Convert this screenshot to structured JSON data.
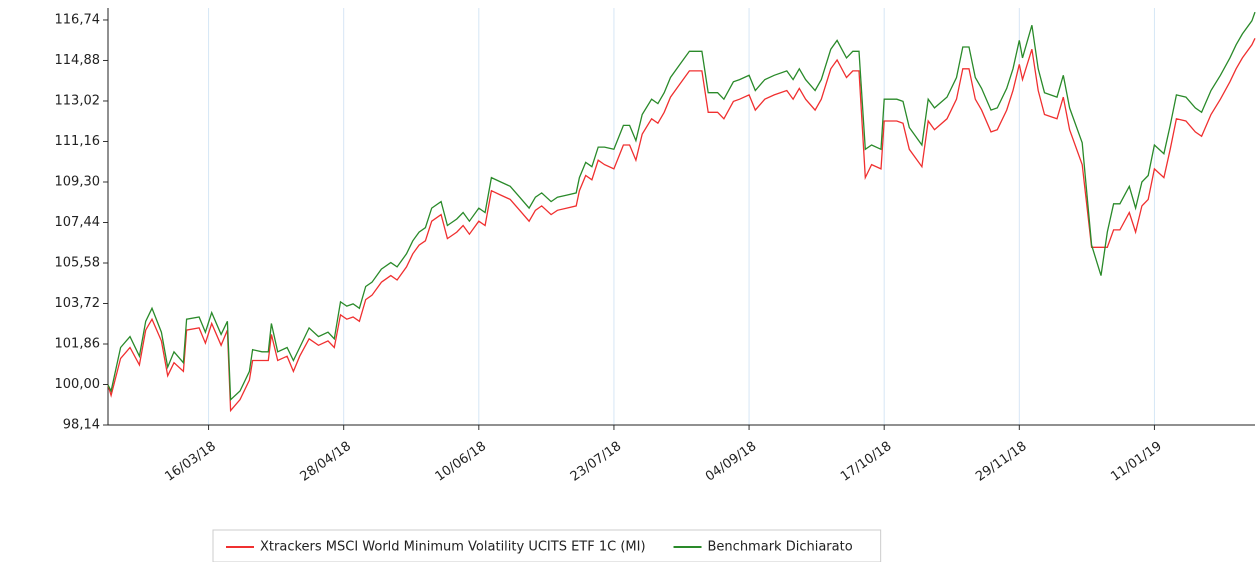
{
  "chart_data": {
    "type": "line",
    "x": [
      "2018-02-12",
      "2018-02-13",
      "2018-02-16",
      "2018-02-19",
      "2018-02-22",
      "2018-02-24",
      "2018-02-26",
      "2018-03-01",
      "2018-03-03",
      "2018-03-05",
      "2018-03-08",
      "2018-03-09",
      "2018-03-13",
      "2018-03-15",
      "2018-03-17",
      "2018-03-20",
      "2018-03-22",
      "2018-03-23",
      "2018-03-26",
      "2018-03-29",
      "2018-03-30",
      "2018-04-02",
      "2018-04-04",
      "2018-04-05",
      "2018-04-07",
      "2018-04-10",
      "2018-04-12",
      "2018-04-14",
      "2018-04-17",
      "2018-04-20",
      "2018-04-23",
      "2018-04-25",
      "2018-04-27",
      "2018-04-29",
      "2018-05-01",
      "2018-05-03",
      "2018-05-05",
      "2018-05-07",
      "2018-05-10",
      "2018-05-13",
      "2018-05-15",
      "2018-05-18",
      "2018-05-20",
      "2018-05-22",
      "2018-05-24",
      "2018-05-26",
      "2018-05-29",
      "2018-05-31",
      "2018-06-03",
      "2018-06-05",
      "2018-06-07",
      "2018-06-10",
      "2018-06-12",
      "2018-06-14",
      "2018-06-17",
      "2018-06-20",
      "2018-06-23",
      "2018-06-26",
      "2018-06-28",
      "2018-06-30",
      "2018-07-03",
      "2018-07-05",
      "2018-07-08",
      "2018-07-11",
      "2018-07-12",
      "2018-07-14",
      "2018-07-16",
      "2018-07-18",
      "2018-07-20",
      "2018-07-23",
      "2018-07-26",
      "2018-07-28",
      "2018-07-30",
      "2018-08-01",
      "2018-08-04",
      "2018-08-06",
      "2018-08-08",
      "2018-08-10",
      "2018-08-13",
      "2018-08-16",
      "2018-08-20",
      "2018-08-22",
      "2018-08-25",
      "2018-08-27",
      "2018-08-30",
      "2018-09-01",
      "2018-09-04",
      "2018-09-06",
      "2018-09-09",
      "2018-09-12",
      "2018-09-16",
      "2018-09-18",
      "2018-09-20",
      "2018-09-22",
      "2018-09-25",
      "2018-09-27",
      "2018-09-30",
      "2018-10-02",
      "2018-10-05",
      "2018-10-07",
      "2018-10-09",
      "2018-10-11",
      "2018-10-13",
      "2018-10-16",
      "2018-10-17",
      "2018-10-21",
      "2018-10-23",
      "2018-10-25",
      "2018-10-29",
      "2018-10-31",
      "2018-11-02",
      "2018-11-06",
      "2018-11-09",
      "2018-11-11",
      "2018-11-13",
      "2018-11-15",
      "2018-11-17",
      "2018-11-20",
      "2018-11-22",
      "2018-11-25",
      "2018-11-27",
      "2018-11-29",
      "2018-11-30",
      "2018-12-03",
      "2018-12-05",
      "2018-12-07",
      "2018-12-11",
      "2018-12-13",
      "2018-12-15",
      "2018-12-19",
      "2018-12-22",
      "2018-12-25",
      "2018-12-27",
      "2018-12-29",
      "2018-12-31",
      "2019-01-03",
      "2019-01-05",
      "2019-01-07",
      "2019-01-09",
      "2019-01-11",
      "2019-01-14",
      "2019-01-16",
      "2019-01-18",
      "2019-01-21",
      "2019-01-24",
      "2019-01-26",
      "2019-01-29",
      "2019-02-01",
      "2019-02-04",
      "2019-02-06",
      "2019-02-08",
      "2019-02-11",
      "2019-02-12"
    ],
    "series": [
      {
        "name": "Xtrackers MSCI World Minimum Volatility UCITS ETF 1C (MI)",
        "color": "#f03030",
        "values": [
          99.98,
          99.5,
          101.2,
          101.7,
          100.9,
          102.5,
          103.0,
          102.0,
          100.4,
          101.0,
          100.6,
          102.5,
          102.6,
          101.9,
          102.8,
          101.8,
          102.5,
          98.8,
          99.3,
          100.2,
          101.1,
          101.1,
          101.1,
          102.3,
          101.1,
          101.3,
          100.6,
          101.3,
          102.1,
          101.8,
          102.0,
          101.7,
          103.2,
          103.0,
          103.1,
          102.9,
          103.9,
          104.1,
          104.7,
          105.0,
          104.8,
          105.4,
          106.0,
          106.4,
          106.6,
          107.5,
          107.8,
          106.7,
          107.0,
          107.3,
          106.9,
          107.5,
          107.3,
          108.9,
          108.7,
          108.5,
          108.0,
          107.5,
          108.0,
          108.2,
          107.8,
          108.0,
          108.1,
          108.2,
          108.9,
          109.6,
          109.4,
          110.3,
          110.1,
          109.9,
          111.0,
          111.0,
          110.3,
          111.5,
          112.2,
          112.0,
          112.5,
          113.2,
          113.8,
          114.4,
          114.4,
          112.5,
          112.5,
          112.2,
          113.0,
          113.1,
          113.3,
          112.6,
          113.1,
          113.3,
          113.5,
          113.1,
          113.6,
          113.1,
          112.6,
          113.1,
          114.5,
          114.9,
          114.1,
          114.4,
          114.4,
          109.5,
          110.1,
          109.9,
          112.1,
          112.1,
          112.0,
          110.8,
          110.0,
          112.1,
          111.7,
          112.2,
          113.1,
          114.5,
          114.5,
          113.1,
          112.6,
          111.6,
          111.7,
          112.6,
          113.5,
          114.7,
          114.0,
          115.4,
          113.5,
          112.4,
          112.2,
          113.2,
          111.7,
          110.1,
          106.3,
          106.3,
          106.3,
          107.1,
          107.1,
          107.9,
          107.0,
          108.2,
          108.5,
          109.9,
          109.5,
          110.8,
          112.2,
          112.1,
          111.6,
          111.4,
          112.4,
          113.1,
          113.9,
          114.5,
          115.0,
          115.6,
          115.9
        ]
      },
      {
        "name": "Benchmark Dichiarato",
        "color": "#2a8a2a",
        "values": [
          99.98,
          99.7,
          101.7,
          102.2,
          101.3,
          102.9,
          103.5,
          102.4,
          100.8,
          101.5,
          101.0,
          103.0,
          103.1,
          102.4,
          103.3,
          102.3,
          102.9,
          99.3,
          99.7,
          100.6,
          101.6,
          101.5,
          101.5,
          102.8,
          101.5,
          101.7,
          101.1,
          101.7,
          102.6,
          102.2,
          102.4,
          102.1,
          103.8,
          103.6,
          103.7,
          103.5,
          104.5,
          104.7,
          105.3,
          105.6,
          105.4,
          106.0,
          106.6,
          107.0,
          107.2,
          108.1,
          108.4,
          107.3,
          107.6,
          107.9,
          107.5,
          108.1,
          107.9,
          109.5,
          109.3,
          109.1,
          108.6,
          108.1,
          108.6,
          108.8,
          108.4,
          108.6,
          108.7,
          108.8,
          109.5,
          110.2,
          110.0,
          110.9,
          110.9,
          110.8,
          111.9,
          111.9,
          111.2,
          112.4,
          113.1,
          112.9,
          113.4,
          114.1,
          114.7,
          115.3,
          115.3,
          113.4,
          113.4,
          113.1,
          113.9,
          114.0,
          114.2,
          113.5,
          114.0,
          114.2,
          114.4,
          114.0,
          114.5,
          114.0,
          113.5,
          114.0,
          115.4,
          115.8,
          115.0,
          115.3,
          115.3,
          110.8,
          111.0,
          110.8,
          113.1,
          113.1,
          113.0,
          111.8,
          111.0,
          113.1,
          112.7,
          113.2,
          114.1,
          115.5,
          115.5,
          114.1,
          113.6,
          112.6,
          112.7,
          113.6,
          114.5,
          115.8,
          115.0,
          116.5,
          114.5,
          113.4,
          113.2,
          114.2,
          112.7,
          111.1,
          106.4,
          105.0,
          107.0,
          108.3,
          108.3,
          109.1,
          108.1,
          109.3,
          109.6,
          111.0,
          110.6,
          111.9,
          113.3,
          113.2,
          112.7,
          112.5,
          113.5,
          114.2,
          115.0,
          115.6,
          116.1,
          116.7,
          117.1
        ]
      }
    ],
    "xlim": [
      "2018-02-12",
      "2019-02-12"
    ],
    "xticks": [
      {
        "value": "2018-03-16",
        "label": "16/03/18"
      },
      {
        "value": "2018-04-28",
        "label": "28/04/18"
      },
      {
        "value": "2018-06-10",
        "label": "10/06/18"
      },
      {
        "value": "2018-07-23",
        "label": "23/07/18"
      },
      {
        "value": "2018-09-04",
        "label": "04/09/18"
      },
      {
        "value": "2018-10-17",
        "label": "17/10/18"
      },
      {
        "value": "2018-11-29",
        "label": "29/11/18"
      },
      {
        "value": "2019-01-11",
        "label": "11/01/19"
      }
    ],
    "ylim": [
      98.14,
      117.29
    ],
    "yticks": [
      {
        "value": 98.14,
        "label": "98,14"
      },
      {
        "value": 100,
        "label": "100,00"
      },
      {
        "value": 101.86,
        "label": "101,86"
      },
      {
        "value": 103.72,
        "label": "103,72"
      },
      {
        "value": 105.58,
        "label": "105,58"
      },
      {
        "value": 107.44,
        "label": "107,44"
      },
      {
        "value": 109.3,
        "label": "109,30"
      },
      {
        "value": 111.16,
        "label": "111,16"
      },
      {
        "value": 113.02,
        "label": "113,02"
      },
      {
        "value": 114.88,
        "label": "114,88"
      },
      {
        "value": 116.74,
        "label": "116,74"
      }
    ],
    "grid": "x",
    "legend": "bottom"
  }
}
